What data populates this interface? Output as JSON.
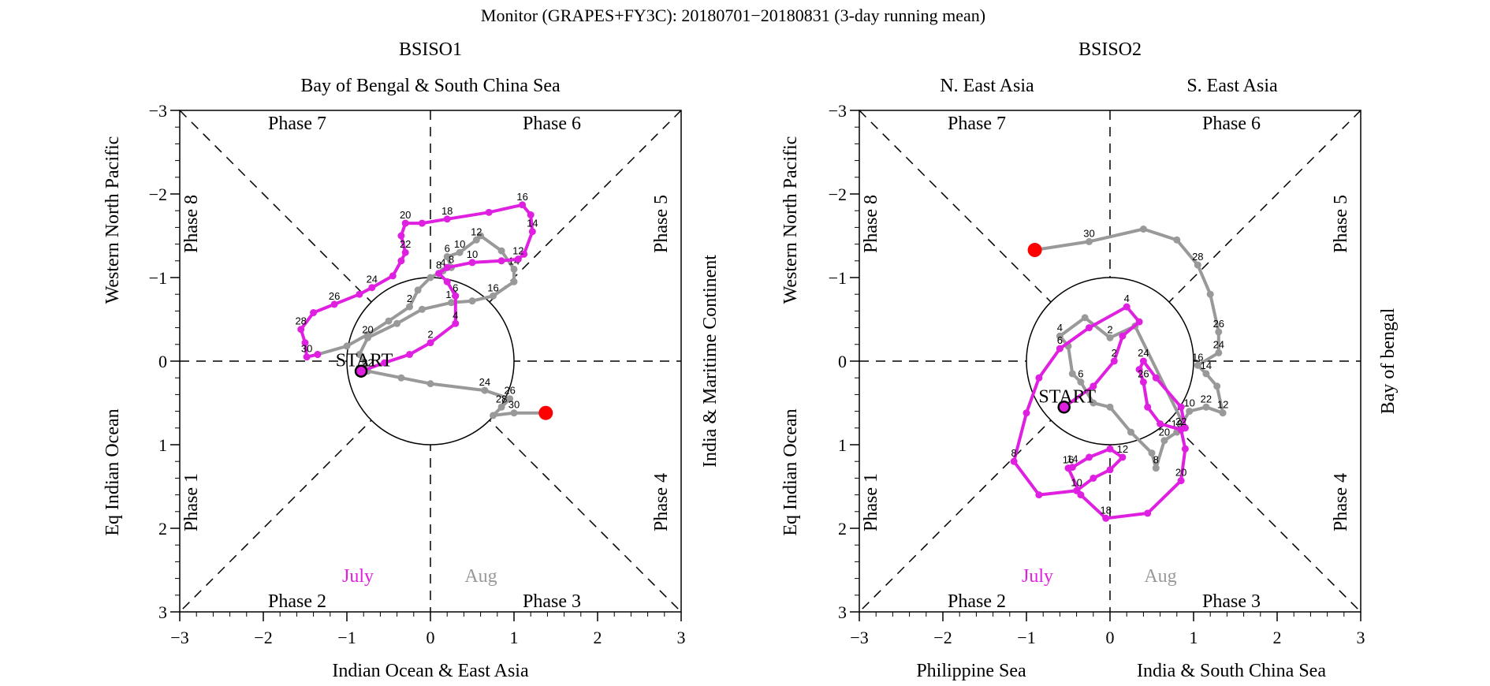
{
  "figure": {
    "title": "Monitor (GRAPES+FY3C): 20180701−20180831 (3-day running mean)"
  },
  "colors": {
    "july": "#e020e0",
    "aug": "#999999",
    "end_marker": "#ff0000",
    "axis": "#000000"
  },
  "chart_data": [
    {
      "type": "line",
      "name": "BSISO1",
      "title": "BSISO1",
      "top_labels": [
        "Bay of Bengal & South China Sea"
      ],
      "bottom_labels": [
        "Indian Ocean & East Asia"
      ],
      "left_label": "Western North Pacific",
      "left_label_lower": "Eq Indian Ocean",
      "right_label": "India & Maritime Continent",
      "xlim": [
        -3,
        3
      ],
      "ylim": [
        -3,
        3
      ],
      "y_inverted": true,
      "ticks": [
        -3,
        -2,
        -1,
        0,
        1,
        2,
        3
      ],
      "tick_labels": [
        "−3",
        "−2",
        "−1",
        "0",
        "1",
        "2",
        "3"
      ],
      "phase_labels": [
        "Phase 1",
        "Phase 2",
        "Phase 3",
        "Phase 4",
        "Phase 5",
        "Phase 6",
        "Phase 7",
        "Phase 8"
      ],
      "month_labels": [
        "July",
        "Aug"
      ],
      "start_label": "START",
      "series": [
        {
          "name": "July",
          "color": "#e020e0",
          "points": [
            [
              -0.83,
              0.12
            ],
            [
              -0.55,
              0.02
            ],
            [
              -0.25,
              -0.08
            ],
            [
              0.0,
              -0.22
            ],
            [
              0.3,
              -0.45
            ],
            [
              0.3,
              -0.78
            ],
            [
              0.2,
              -0.95
            ],
            [
              0.1,
              -1.05
            ],
            [
              0.2,
              -1.12
            ],
            [
              0.5,
              -1.18
            ],
            [
              0.85,
              -1.2
            ],
            [
              1.05,
              -1.22
            ],
            [
              1.12,
              -1.28
            ],
            [
              1.22,
              -1.55
            ],
            [
              1.2,
              -1.75
            ],
            [
              1.1,
              -1.87
            ],
            [
              0.7,
              -1.78
            ],
            [
              0.2,
              -1.7
            ],
            [
              -0.1,
              -1.65
            ],
            [
              -0.3,
              -1.65
            ],
            [
              -0.35,
              -1.5
            ],
            [
              -0.3,
              -1.3
            ],
            [
              -0.35,
              -1.2
            ],
            [
              -0.45,
              -1.02
            ],
            [
              -0.7,
              -0.88
            ],
            [
              -0.85,
              -0.8
            ],
            [
              -1.15,
              -0.68
            ],
            [
              -1.4,
              -0.58
            ],
            [
              -1.55,
              -0.38
            ],
            [
              -1.5,
              -0.22
            ],
            [
              -1.48,
              -0.05
            ],
            [
              -1.35,
              -0.08
            ]
          ],
          "labels": [
            {
              "i": 3,
              "text": "2"
            },
            {
              "i": 4,
              "text": "4"
            },
            {
              "i": 5,
              "text": "6"
            },
            {
              "i": 7,
              "text": "8"
            },
            {
              "i": 9,
              "text": "10"
            },
            {
              "i": 11,
              "text": "12"
            },
            {
              "i": 13,
              "text": "14"
            },
            {
              "i": 15,
              "text": "16"
            },
            {
              "i": 17,
              "text": "18"
            },
            {
              "i": 19,
              "text": "20"
            },
            {
              "i": 21,
              "text": "22"
            },
            {
              "i": 24,
              "text": "24"
            },
            {
              "i": 26,
              "text": "26"
            },
            {
              "i": 28,
              "text": "28"
            },
            {
              "i": 30,
              "text": "30"
            }
          ]
        },
        {
          "name": "Aug",
          "color": "#999999",
          "points": [
            [
              -1.35,
              -0.08
            ],
            [
              -1.0,
              -0.18
            ],
            [
              -0.75,
              -0.32
            ],
            [
              -0.5,
              -0.48
            ],
            [
              -0.25,
              -0.65
            ],
            [
              -0.15,
              -0.85
            ],
            [
              0.0,
              -1.0
            ],
            [
              0.15,
              -1.08
            ],
            [
              0.25,
              -1.12
            ],
            [
              0.2,
              -1.25
            ],
            [
              0.35,
              -1.3
            ],
            [
              0.55,
              -1.45
            ],
            [
              0.6,
              -1.5
            ],
            [
              0.85,
              -1.32
            ],
            [
              1.0,
              -1.1
            ],
            [
              1.0,
              -0.95
            ],
            [
              0.75,
              -0.78
            ],
            [
              0.5,
              -0.72
            ],
            [
              0.25,
              -0.7
            ],
            [
              -0.1,
              -0.62
            ],
            [
              -0.4,
              -0.45
            ],
            [
              -0.75,
              -0.28
            ],
            [
              -0.85,
              -0.08
            ],
            [
              -0.75,
              0.12
            ],
            [
              -0.35,
              0.2
            ],
            [
              0.0,
              0.27
            ],
            [
              0.65,
              0.35
            ],
            [
              0.95,
              0.45
            ],
            [
              0.85,
              0.55
            ],
            [
              0.75,
              0.65
            ],
            [
              1.0,
              0.62
            ],
            [
              1.38,
              0.62
            ]
          ],
          "labels": [
            {
              "i": 4,
              "text": "2"
            },
            {
              "i": 9,
              "text": "6"
            },
            {
              "i": 8,
              "text": "8"
            },
            {
              "i": 7,
              "text": "4"
            },
            {
              "i": 10,
              "text": "10"
            },
            {
              "i": 11,
              "text": "12"
            },
            {
              "i": 14,
              "text": "14"
            },
            {
              "i": 16,
              "text": "16"
            },
            {
              "i": 18,
              "text": "18"
            },
            {
              "i": 21,
              "text": "20"
            },
            {
              "i": 23,
              "text": "22"
            },
            {
              "i": 26,
              "text": "24"
            },
            {
              "i": 27,
              "text": "26"
            },
            {
              "i": 28,
              "text": "28"
            },
            {
              "i": 30,
              "text": "30"
            }
          ]
        }
      ],
      "start": [
        -0.83,
        0.12
      ],
      "end": [
        1.38,
        0.62
      ]
    },
    {
      "type": "line",
      "name": "BSISO2",
      "title": "BSISO2",
      "top_labels": [
        "N. East Asia",
        "S. East Asia"
      ],
      "bottom_labels": [
        "Philippine Sea",
        "India & South China Sea"
      ],
      "left_label": "Western North Pacific",
      "left_label_lower": "Eq Indian Ocean",
      "right_label": "Bay of bengal",
      "xlim": [
        -3,
        3
      ],
      "ylim": [
        -3,
        3
      ],
      "y_inverted": true,
      "ticks": [
        -3,
        -2,
        -1,
        0,
        1,
        2,
        3
      ],
      "tick_labels": [
        "−3",
        "−2",
        "−1",
        "0",
        "1",
        "2",
        "3"
      ],
      "phase_labels": [
        "Phase 1",
        "Phase 2",
        "Phase 3",
        "Phase 4",
        "Phase 5",
        "Phase 6",
        "Phase 7",
        "Phase 8"
      ],
      "month_labels": [
        "July",
        "Aug"
      ],
      "start_label": "START",
      "series": [
        {
          "name": "July",
          "color": "#e020e0",
          "points": [
            [
              -0.55,
              0.55
            ],
            [
              -0.2,
              0.3
            ],
            [
              0.05,
              0.0
            ],
            [
              0.15,
              -0.3
            ],
            [
              0.35,
              -0.47
            ],
            [
              0.2,
              -0.65
            ],
            [
              -0.25,
              -0.4
            ],
            [
              -0.6,
              -0.15
            ],
            [
              -0.85,
              0.2
            ],
            [
              -1.0,
              0.62
            ],
            [
              -1.15,
              1.2
            ],
            [
              -0.85,
              1.6
            ],
            [
              -0.4,
              1.55
            ],
            [
              -0.2,
              1.4
            ],
            [
              0.0,
              1.3
            ],
            [
              0.15,
              1.15
            ],
            [
              0.0,
              1.05
            ],
            [
              -0.25,
              1.15
            ],
            [
              -0.45,
              1.27
            ],
            [
              -0.5,
              1.28
            ],
            [
              -0.35,
              1.6
            ],
            [
              -0.05,
              1.88
            ],
            [
              0.45,
              1.82
            ],
            [
              0.85,
              1.43
            ],
            [
              0.9,
              1.05
            ],
            [
              0.85,
              0.82
            ],
            [
              0.6,
              0.75
            ],
            [
              0.45,
              0.55
            ],
            [
              0.4,
              0.25
            ],
            [
              0.35,
              0.1
            ],
            [
              0.4,
              0.0
            ],
            [
              0.55,
              0.2
            ],
            [
              0.85,
              0.55
            ],
            [
              0.9,
              0.8
            ]
          ],
          "labels": [
            {
              "i": 2,
              "text": "2"
            },
            {
              "i": 5,
              "text": "4"
            },
            {
              "i": 7,
              "text": "6"
            },
            {
              "i": 10,
              "text": "8"
            },
            {
              "i": 12,
              "text": "10"
            },
            {
              "i": 15,
              "text": "12"
            },
            {
              "i": 18,
              "text": "14"
            },
            {
              "i": 19,
              "text": "16"
            },
            {
              "i": 21,
              "text": "18"
            },
            {
              "i": 23,
              "text": "20"
            },
            {
              "i": 25,
              "text": "22"
            },
            {
              "i": 30,
              "text": "24"
            },
            {
              "i": 28,
              "text": "26"
            }
          ]
        },
        {
          "name": "Aug",
          "color": "#999999",
          "points": [
            [
              0.9,
              0.8
            ],
            [
              0.3,
              -0.42
            ],
            [
              0.0,
              -0.28
            ],
            [
              -0.3,
              -0.52
            ],
            [
              -0.6,
              -0.3
            ],
            [
              -0.5,
              -0.18
            ],
            [
              -0.45,
              0.15
            ],
            [
              -0.35,
              0.25
            ],
            [
              -0.2,
              0.5
            ],
            [
              0.0,
              0.55
            ],
            [
              0.25,
              0.85
            ],
            [
              0.5,
              1.1
            ],
            [
              0.55,
              1.28
            ],
            [
              0.65,
              0.95
            ],
            [
              0.8,
              0.85
            ],
            [
              0.95,
              0.6
            ],
            [
              1.15,
              0.55
            ],
            [
              1.35,
              0.62
            ],
            [
              1.28,
              0.3
            ],
            [
              1.15,
              0.15
            ],
            [
              1.05,
              0.05
            ],
            [
              1.3,
              -0.1
            ],
            [
              1.3,
              -0.35
            ],
            [
              1.2,
              -0.8
            ],
            [
              1.05,
              -1.15
            ],
            [
              0.8,
              -1.45
            ],
            [
              0.4,
              -1.58
            ],
            [
              -0.25,
              -1.43
            ],
            [
              -0.9,
              -1.33
            ]
          ],
          "labels": [
            {
              "i": 2,
              "text": "2"
            },
            {
              "i": 4,
              "text": "4"
            },
            {
              "i": 7,
              "text": "6"
            },
            {
              "i": 12,
              "text": "8"
            },
            {
              "i": 15,
              "text": "10"
            },
            {
              "i": 17,
              "text": "12"
            },
            {
              "i": 19,
              "text": "14"
            },
            {
              "i": 20,
              "text": "16"
            },
            {
              "i": 14,
              "text": "18"
            },
            {
              "i": 13,
              "text": "20"
            },
            {
              "i": 16,
              "text": "22"
            },
            {
              "i": 21,
              "text": "24"
            },
            {
              "i": 22,
              "text": "26"
            },
            {
              "i": 24,
              "text": "28"
            },
            {
              "i": 27,
              "text": "30"
            }
          ]
        }
      ],
      "start": [
        -0.55,
        0.55
      ],
      "end": [
        -0.9,
        -1.33
      ]
    }
  ]
}
